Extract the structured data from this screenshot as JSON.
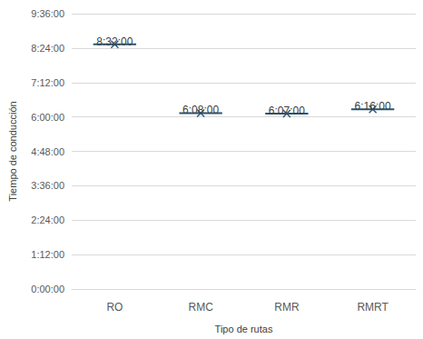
{
  "chart_data": {
    "type": "scatter",
    "x_label": "Tipo de rutas",
    "y_label": "Tiempo de conducción",
    "categories": [
      "RO",
      "RMC",
      "RMR",
      "RMRT"
    ],
    "values": [
      30720,
      22080,
      22020,
      22560
    ],
    "value_labels": [
      "8:32:00",
      "6:08:00",
      "6:07:00",
      "6:16:00"
    ],
    "data_labels": true,
    "marker": "x",
    "color": "#2b5572",
    "grid": true,
    "ylim": [
      0,
      34560
    ],
    "yticks": [
      {
        "value": 0,
        "label": "0:00:00"
      },
      {
        "value": 4320,
        "label": "1:12:00"
      },
      {
        "value": 8640,
        "label": "2:24:00"
      },
      {
        "value": 12960,
        "label": "3:36:00"
      },
      {
        "value": 17280,
        "label": "4:48:00"
      },
      {
        "value": 21600,
        "label": "6:00:00"
      },
      {
        "value": 25920,
        "label": "7:12:00"
      },
      {
        "value": 30240,
        "label": "8:24:00"
      },
      {
        "value": 34560,
        "label": "9:36:00"
      }
    ]
  }
}
